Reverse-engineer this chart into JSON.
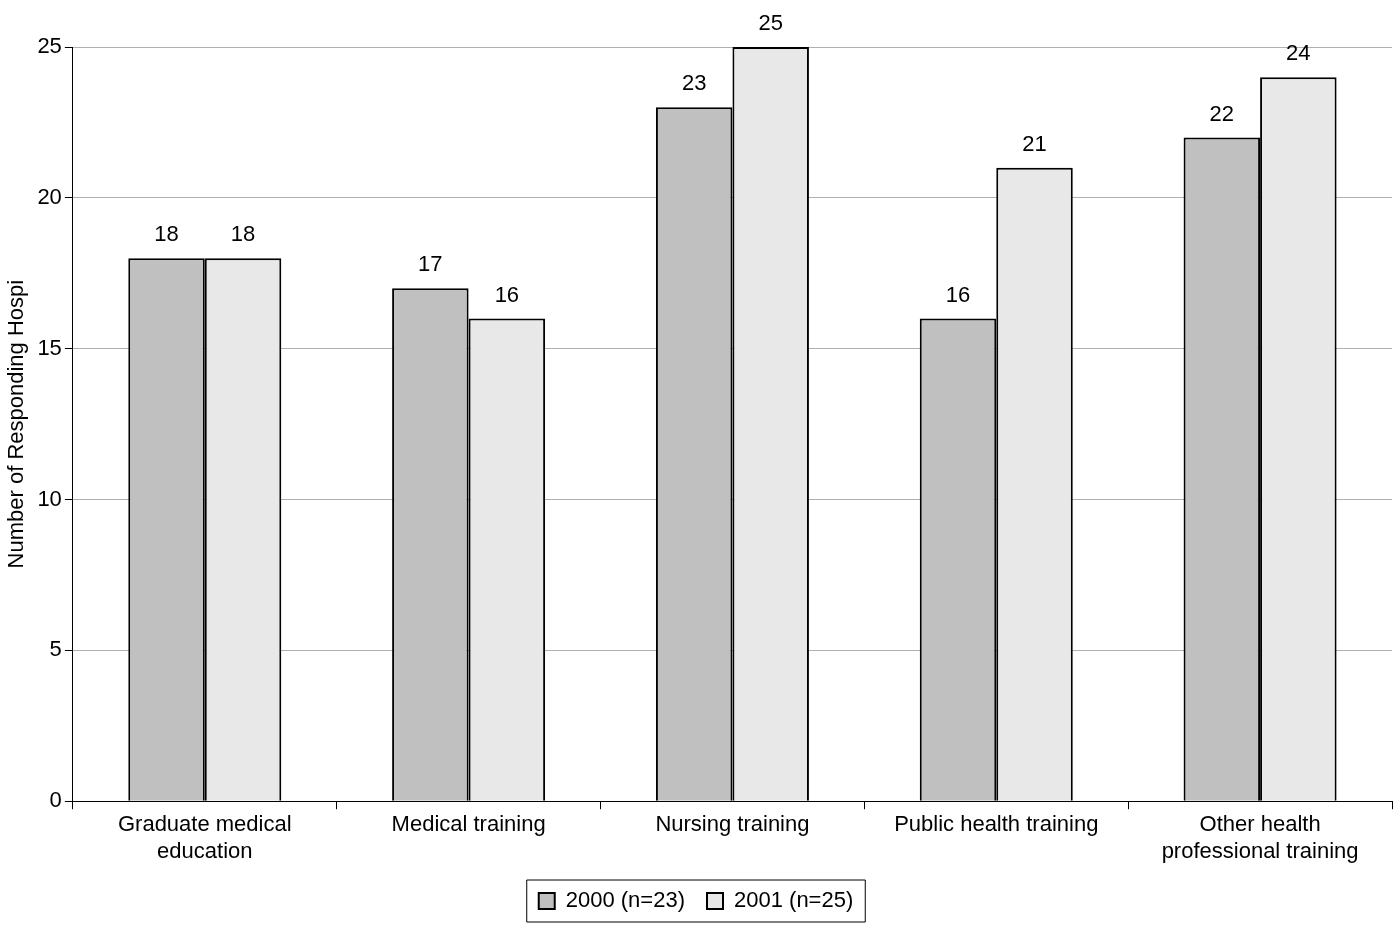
{
  "chart_data": {
    "type": "bar",
    "ylabel": "Number of Responding Hospi",
    "categories": [
      "Graduate medical education",
      "Medical training",
      "Nursing training",
      "Public health training",
      "Other health professional training"
    ],
    "series": [
      {
        "name": "2000 (n=23)",
        "color": "#c0c0c0",
        "values": [
          18,
          17,
          23,
          16,
          22
        ]
      },
      {
        "name": "2001 (n=25)",
        "color": "#e8e8e8",
        "values": [
          18,
          16,
          25,
          21,
          24
        ]
      }
    ],
    "ylim": [
      0,
      25
    ],
    "yticks": [
      0,
      5,
      10,
      15,
      20,
      25
    ],
    "grid": "y",
    "legend": "bottom",
    "data_labels": true
  }
}
